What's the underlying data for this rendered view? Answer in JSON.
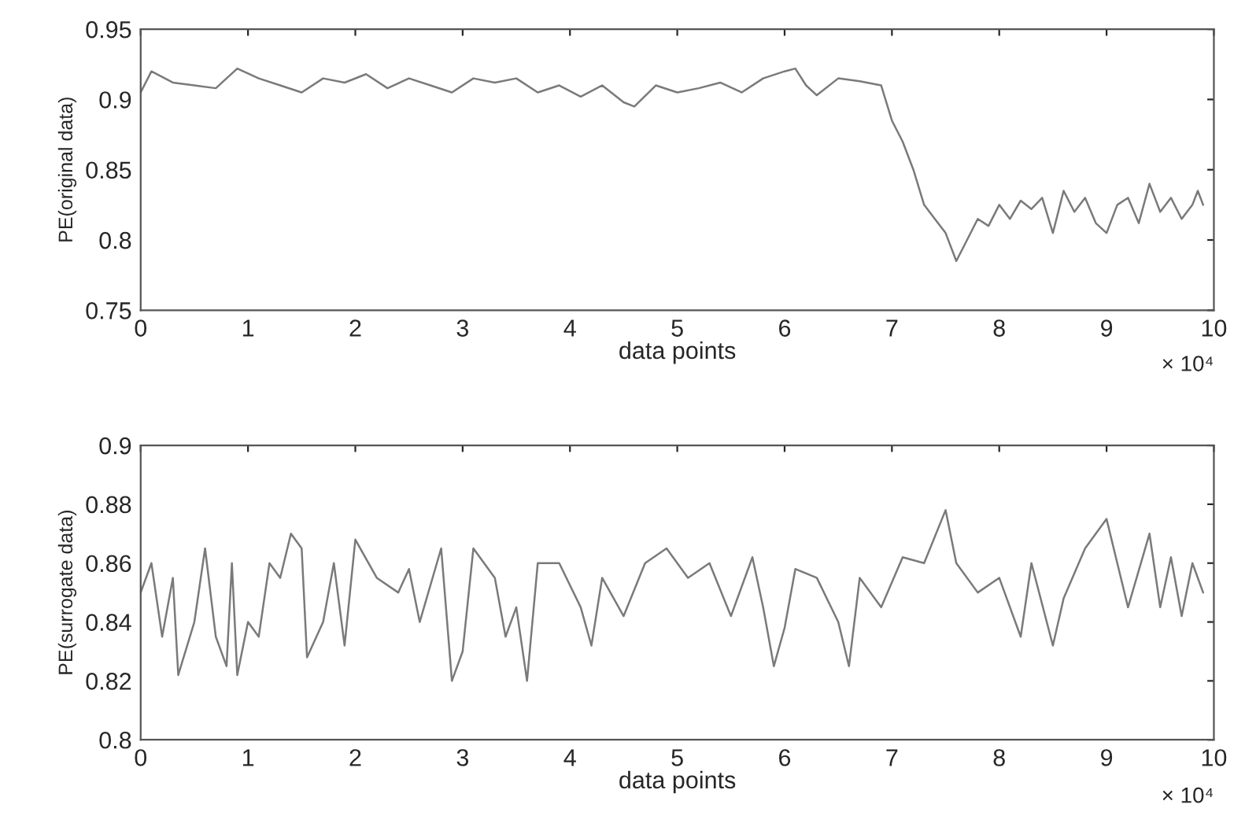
{
  "chart_data": [
    {
      "type": "line",
      "xlabel": "data points",
      "ylabel": "PE(original data)",
      "xlim": [
        0,
        10
      ],
      "xticks": [
        0,
        1,
        2,
        3,
        4,
        5,
        6,
        7,
        8,
        9,
        10
      ],
      "ylim": [
        0.75,
        0.95
      ],
      "yticks": [
        0.75,
        0.8,
        0.85,
        0.9,
        0.95
      ],
      "grid": false,
      "annotations": [
        "× 10⁴"
      ],
      "x": [
        0,
        0.1,
        0.3,
        0.5,
        0.7,
        0.9,
        1.1,
        1.3,
        1.5,
        1.7,
        1.9,
        2.1,
        2.3,
        2.5,
        2.7,
        2.9,
        3.1,
        3.3,
        3.5,
        3.7,
        3.9,
        4.1,
        4.3,
        4.5,
        4.6,
        4.8,
        5.0,
        5.2,
        5.4,
        5.6,
        5.8,
        6.0,
        6.1,
        6.2,
        6.3,
        6.5,
        6.7,
        6.9,
        7.0,
        7.1,
        7.2,
        7.3,
        7.4,
        7.5,
        7.6,
        7.7,
        7.8,
        7.9,
        8.0,
        8.1,
        8.2,
        8.3,
        8.4,
        8.5,
        8.6,
        8.7,
        8.8,
        8.9,
        9.0,
        9.1,
        9.2,
        9.3,
        9.4,
        9.5,
        9.6,
        9.7,
        9.8,
        9.85,
        9.9
      ],
      "series": [
        {
          "color": "#7a7a7a",
          "values": [
            0.905,
            0.92,
            0.912,
            0.91,
            0.908,
            0.922,
            0.915,
            0.91,
            0.905,
            0.915,
            0.912,
            0.918,
            0.908,
            0.915,
            0.91,
            0.905,
            0.915,
            0.912,
            0.915,
            0.905,
            0.91,
            0.902,
            0.91,
            0.898,
            0.895,
            0.91,
            0.905,
            0.908,
            0.912,
            0.905,
            0.915,
            0.92,
            0.922,
            0.91,
            0.903,
            0.915,
            0.913,
            0.91,
            0.885,
            0.87,
            0.85,
            0.825,
            0.815,
            0.805,
            0.785,
            0.8,
            0.815,
            0.81,
            0.825,
            0.815,
            0.828,
            0.822,
            0.83,
            0.805,
            0.835,
            0.82,
            0.83,
            0.812,
            0.805,
            0.825,
            0.83,
            0.812,
            0.84,
            0.82,
            0.83,
            0.815,
            0.825,
            0.835,
            0.825
          ]
        }
      ]
    },
    {
      "type": "line",
      "xlabel": "data points",
      "ylabel": "PE(surrogate data)",
      "xlim": [
        0,
        10
      ],
      "xticks": [
        0,
        1,
        2,
        3,
        4,
        5,
        6,
        7,
        8,
        9,
        10
      ],
      "ylim": [
        0.8,
        0.9
      ],
      "yticks": [
        0.8,
        0.82,
        0.84,
        0.86,
        0.88,
        0.9
      ],
      "grid": false,
      "annotations": [
        "× 10⁴"
      ],
      "x": [
        0,
        0.1,
        0.2,
        0.3,
        0.35,
        0.5,
        0.6,
        0.7,
        0.8,
        0.85,
        0.9,
        1.0,
        1.1,
        1.2,
        1.3,
        1.4,
        1.5,
        1.55,
        1.7,
        1.8,
        1.9,
        2.0,
        2.2,
        2.4,
        2.5,
        2.6,
        2.8,
        2.9,
        3.0,
        3.1,
        3.3,
        3.4,
        3.5,
        3.6,
        3.7,
        3.9,
        4.1,
        4.2,
        4.3,
        4.5,
        4.7,
        4.9,
        5.1,
        5.3,
        5.5,
        5.7,
        5.8,
        5.9,
        6.0,
        6.1,
        6.3,
        6.5,
        6.6,
        6.7,
        6.9,
        7.1,
        7.3,
        7.5,
        7.6,
        7.8,
        8.0,
        8.2,
        8.3,
        8.5,
        8.6,
        8.8,
        9.0,
        9.1,
        9.2,
        9.4,
        9.5,
        9.6,
        9.7,
        9.8,
        9.9
      ],
      "series": [
        {
          "color": "#7a7a7a",
          "values": [
            0.85,
            0.86,
            0.835,
            0.855,
            0.822,
            0.84,
            0.865,
            0.835,
            0.825,
            0.86,
            0.822,
            0.84,
            0.835,
            0.86,
            0.855,
            0.87,
            0.865,
            0.828,
            0.84,
            0.86,
            0.832,
            0.868,
            0.855,
            0.85,
            0.858,
            0.84,
            0.865,
            0.82,
            0.83,
            0.865,
            0.855,
            0.835,
            0.845,
            0.82,
            0.86,
            0.86,
            0.845,
            0.832,
            0.855,
            0.842,
            0.86,
            0.865,
            0.855,
            0.86,
            0.842,
            0.862,
            0.845,
            0.825,
            0.838,
            0.858,
            0.855,
            0.84,
            0.825,
            0.855,
            0.845,
            0.862,
            0.86,
            0.878,
            0.86,
            0.85,
            0.855,
            0.835,
            0.86,
            0.832,
            0.848,
            0.865,
            0.875,
            0.86,
            0.845,
            0.87,
            0.845,
            0.862,
            0.842,
            0.86,
            0.85
          ]
        }
      ]
    }
  ]
}
